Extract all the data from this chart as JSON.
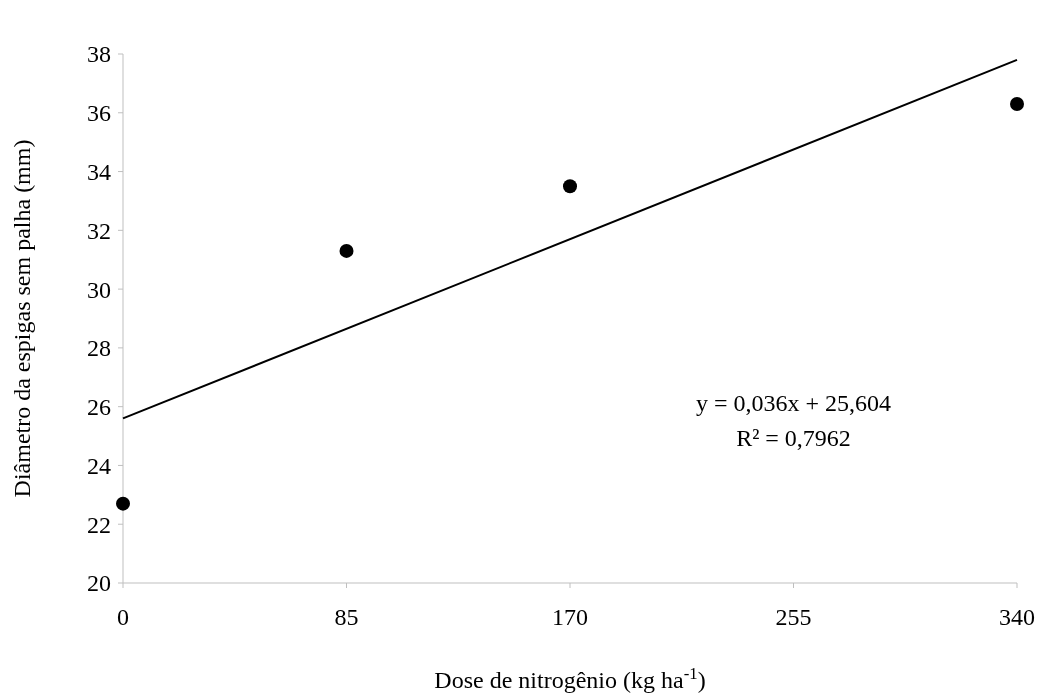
{
  "chart_data": {
    "type": "scatter",
    "xlabel": "Dose de nitrogênio (kg ha$^{-1}$)",
    "ylabel": "Diâmetro da espigas sem palha (mm)",
    "xlim": [
      0,
      340
    ],
    "xticks": [
      0,
      85,
      170,
      255,
      340
    ],
    "ylim": [
      20,
      38
    ],
    "yticks": [
      20,
      22,
      24,
      26,
      28,
      30,
      32,
      34,
      36,
      38
    ],
    "series": [
      {
        "color": "#000000",
        "marker": "circle",
        "x": [
          0,
          85,
          170,
          340
        ],
        "values": [
          22.7,
          31.3,
          33.5,
          36.3
        ]
      },
      {
        "type": "line",
        "color": "#000000",
        "x": [
          0,
          340
        ],
        "values": [
          25.6,
          37.8
        ],
        "line_style": "solid"
      }
    ],
    "annotations": [
      "y = 0,036x + 25,604",
      "R² = 0,7962"
    ]
  }
}
